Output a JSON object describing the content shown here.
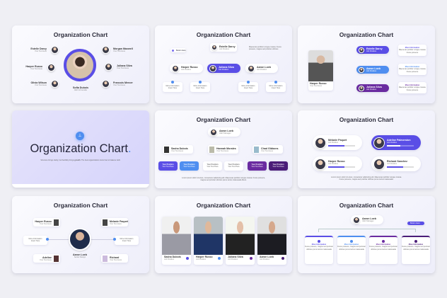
{
  "title": "Organization Chart",
  "colors": {
    "purple": "#5a4ee6",
    "blue": "#4f8ef0",
    "violet": "#6a2ba0",
    "dark_violet": "#4a1d78"
  },
  "s1": {
    "center": {
      "name": "Sofia Dubois",
      "sub": "CEO & Founder"
    },
    "left": [
      {
        "name": "Estelle Darcy",
        "sub": "Your Text Here"
      },
      {
        "name": "Harper Russo",
        "sub": "Your Text Here"
      },
      {
        "name": "Olivia Wilson",
        "sub": "Your Text Here"
      }
    ],
    "right": [
      {
        "name": "Morgan Maxwell",
        "sub": "Your Text Here"
      },
      {
        "name": "Juliana Silva",
        "sub": "Your Text Here"
      },
      {
        "name": "Francois Mercer",
        "sub": "Your Text Here"
      }
    ]
  },
  "s2": {
    "button": "Button Here",
    "top": {
      "name": "Estelle Darcy",
      "sub": "Job Position"
    },
    "note": "Maecenas porttitor congue massa. Fusce posuere, magna sed pulvinar ultricies",
    "mid": [
      {
        "name": "Harper Russo",
        "sub": "Job Position"
      },
      {
        "name": "Juliana Silva",
        "sub": "Job Position"
      },
      {
        "name": "Aaron Loeb",
        "sub": "Job Position"
      }
    ],
    "info": [
      {
        "t": "More Information",
        "s": "Insert Here"
      },
      {
        "t": "More Information",
        "s": "Insert Here"
      },
      {
        "t": "More Information",
        "s": "Insert Here"
      },
      {
        "t": "More Information",
        "s": "Insert Here"
      }
    ]
  },
  "s3": {
    "photo": {
      "name": "Harper Russo",
      "sub": "Your Text Here"
    },
    "pills": [
      {
        "name": "Estelle Darcy",
        "sub": "Job Position"
      },
      {
        "name": "Aaron Loeb",
        "sub": "Job Position"
      },
      {
        "name": "Juliana Silva",
        "sub": "Job Position"
      }
    ],
    "info_title": "More Information",
    "info_text": "Maecenas porttitor congue massa. Fusce posuere"
  },
  "s4": {
    "title": "Organization Chart",
    "dot": ".",
    "tagline_a": "Structure brings clarity, but flexibility brings ",
    "tagline_b": "growth",
    "tagline_c": ". The best organizations know how to balance both."
  },
  "s5": {
    "top": {
      "name": "Aaron Loeb",
      "sub": "CEO Manager"
    },
    "mid": [
      {
        "name": "Sasha Dubois",
        "sub": "Your Text Here"
      },
      {
        "name": "Hannah Morales",
        "sub": "Your Text Here"
      },
      {
        "name": "Chad Gibbons",
        "sub": "Your Text Here"
      }
    ],
    "position": "Your Position",
    "position_sub": "Your Text Here",
    "foot": "Lorem ipsum dolor sit amet, consectetur adipiscing elit. Maecenas porttitor congue massa. Fusce posuere, magna sed pulvinar ultricies purus lectus malesuada libero."
  },
  "s6": {
    "people": [
      {
        "name": "Melanie Paquet",
        "sub": "Job Position",
        "progress": 0.6
      },
      {
        "name": "Adeline Palmerston",
        "sub": "Job Position",
        "progress": 0.5
      },
      {
        "name": "Harper Russo",
        "sub": "Job Position",
        "progress": 0.6
      },
      {
        "name": "Richard Sanchez",
        "sub": "Job Position",
        "progress": 0.6
      }
    ],
    "foot": "Lorem ipsum dolor sit amet, consectetur adipiscing elit. Maecenas porttitor congue massa. Fusce posuere, magna sed pulvinar ultricies purus lectus malesuada."
  },
  "s7": {
    "center": {
      "name": "Aaron Loeb",
      "sub": "Senior Design"
    },
    "cards": [
      {
        "name": "Harper Russo",
        "sub": "Your Text Here"
      },
      {
        "name": "Melanie Paquet",
        "sub": "Your Text Here"
      },
      {
        "name": "Adeline",
        "sub": "Your Text Here"
      },
      {
        "name": "Richard",
        "sub": "Your Text Here"
      }
    ],
    "info": {
      "t": "More Information",
      "s": "Insert Here"
    }
  },
  "s8": {
    "people": [
      {
        "name": "Sasha Dubois",
        "sub": "Job Position"
      },
      {
        "name": "Harper Russo",
        "sub": "Job Position"
      },
      {
        "name": "Juliana Silva",
        "sub": "Job Position"
      },
      {
        "name": "Aaron Loeb",
        "sub": "Job Position"
      }
    ]
  },
  "s9": {
    "top": {
      "name": "Aaron Loeb",
      "sub": "CEO Manager"
    },
    "button": "Button Here",
    "info_title": "More Information",
    "info_text": "Fusce posuere, magna sed pulvinar ultricies purus lectus malesuada"
  }
}
